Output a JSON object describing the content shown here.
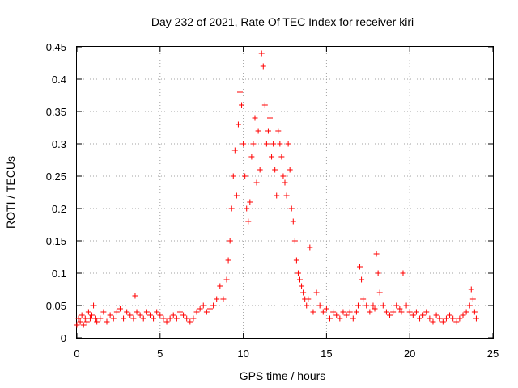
{
  "chart_data": {
    "type": "scatter",
    "title": "Day 232 of 2021, Rate Of TEC Index for receiver kiri",
    "xlabel": "GPS time / hours",
    "ylabel": "ROTI / TECUs",
    "xlim": [
      0,
      25
    ],
    "ylim": [
      0,
      0.45
    ],
    "x_ticks": [
      "0",
      "5",
      "10",
      "15",
      "20",
      "25"
    ],
    "y_ticks": [
      "0",
      "0.05",
      "0.1",
      "0.15",
      "0.2",
      "0.25",
      "0.3",
      "0.35",
      "0.4",
      "0.45"
    ],
    "grid": true,
    "marker": "+",
    "series_color": "#ff0000",
    "series": [
      {
        "x": [
          0.0,
          0.1,
          0.2,
          0.3,
          0.4,
          0.5,
          0.6,
          0.7,
          0.8,
          0.9,
          1.0,
          1.1,
          1.2,
          1.4,
          1.6,
          1.8,
          2.0,
          2.2,
          2.4,
          2.6,
          2.8,
          3.0,
          3.2,
          3.4,
          3.5,
          3.6,
          3.8,
          4.0,
          4.2,
          4.4,
          4.6,
          4.8,
          5.0,
          5.2,
          5.4,
          5.6,
          5.8,
          6.0,
          6.2,
          6.4,
          6.6,
          6.8,
          7.0,
          7.2,
          7.4,
          7.6,
          7.8,
          8.0,
          8.2,
          8.4,
          8.6,
          8.8,
          9.0,
          9.1,
          9.2,
          9.3,
          9.4,
          9.5,
          9.6,
          9.7,
          9.8,
          9.9,
          10.0,
          10.1,
          10.2,
          10.3,
          10.4,
          10.5,
          10.6,
          10.7,
          10.8,
          10.9,
          11.0,
          11.1,
          11.2,
          11.3,
          11.4,
          11.5,
          11.6,
          11.7,
          11.8,
          11.9,
          12.0,
          12.1,
          12.2,
          12.3,
          12.4,
          12.5,
          12.6,
          12.7,
          12.8,
          12.9,
          13.0,
          13.1,
          13.2,
          13.3,
          13.4,
          13.5,
          13.6,
          13.7,
          13.8,
          13.9,
          14.0,
          14.2,
          14.4,
          14.6,
          14.8,
          15.0,
          15.2,
          15.4,
          15.6,
          15.8,
          16.0,
          16.2,
          16.4,
          16.6,
          16.8,
          16.9,
          17.0,
          17.1,
          17.2,
          17.4,
          17.6,
          17.8,
          17.9,
          18.0,
          18.1,
          18.2,
          18.4,
          18.6,
          18.8,
          19.0,
          19.2,
          19.4,
          19.5,
          19.6,
          19.8,
          20.0,
          20.2,
          20.4,
          20.6,
          20.8,
          21.0,
          21.2,
          21.4,
          21.6,
          21.8,
          22.0,
          22.2,
          22.4,
          22.6,
          22.8,
          23.0,
          23.2,
          23.4,
          23.6,
          23.7,
          23.8,
          23.9,
          24.0
        ],
        "y": [
          0.02,
          0.03,
          0.025,
          0.035,
          0.02,
          0.03,
          0.025,
          0.04,
          0.03,
          0.035,
          0.05,
          0.03,
          0.025,
          0.03,
          0.04,
          0.025,
          0.035,
          0.03,
          0.04,
          0.045,
          0.03,
          0.04,
          0.035,
          0.03,
          0.065,
          0.04,
          0.035,
          0.03,
          0.04,
          0.035,
          0.03,
          0.04,
          0.035,
          0.03,
          0.025,
          0.03,
          0.035,
          0.03,
          0.04,
          0.035,
          0.03,
          0.025,
          0.03,
          0.04,
          0.045,
          0.05,
          0.04,
          0.045,
          0.05,
          0.06,
          0.08,
          0.06,
          0.09,
          0.12,
          0.15,
          0.2,
          0.25,
          0.29,
          0.22,
          0.33,
          0.38,
          0.36,
          0.3,
          0.25,
          0.2,
          0.18,
          0.21,
          0.28,
          0.3,
          0.34,
          0.24,
          0.32,
          0.26,
          0.44,
          0.42,
          0.36,
          0.3,
          0.32,
          0.34,
          0.28,
          0.3,
          0.26,
          0.22,
          0.32,
          0.3,
          0.28,
          0.25,
          0.24,
          0.22,
          0.3,
          0.26,
          0.2,
          0.18,
          0.15,
          0.12,
          0.1,
          0.09,
          0.08,
          0.07,
          0.06,
          0.05,
          0.06,
          0.14,
          0.04,
          0.07,
          0.05,
          0.04,
          0.045,
          0.03,
          0.04,
          0.035,
          0.03,
          0.04,
          0.035,
          0.04,
          0.03,
          0.04,
          0.05,
          0.11,
          0.09,
          0.06,
          0.05,
          0.04,
          0.05,
          0.045,
          0.13,
          0.1,
          0.07,
          0.05,
          0.04,
          0.035,
          0.04,
          0.05,
          0.045,
          0.04,
          0.1,
          0.05,
          0.04,
          0.035,
          0.04,
          0.03,
          0.035,
          0.04,
          0.03,
          0.025,
          0.035,
          0.03,
          0.025,
          0.03,
          0.035,
          0.03,
          0.025,
          0.03,
          0.035,
          0.04,
          0.05,
          0.075,
          0.06,
          0.04,
          0.03
        ]
      }
    ]
  }
}
